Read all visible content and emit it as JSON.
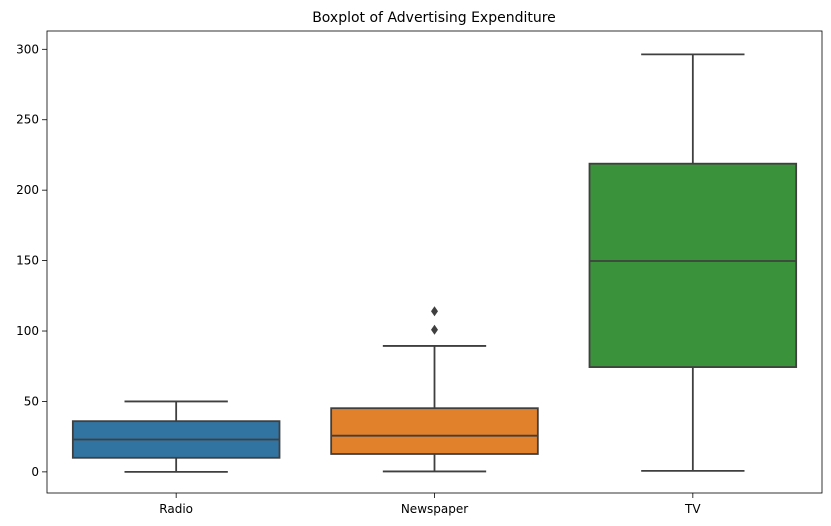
{
  "chart_data": {
    "type": "boxplot",
    "title": "Boxplot of Advertising Expenditure",
    "xlabel": "",
    "ylabel": "",
    "ylim": [
      -15,
      313
    ],
    "yticks": [
      0,
      50,
      100,
      150,
      200,
      250,
      300
    ],
    "grid": false,
    "categories": [
      "Radio",
      "Newspaper",
      "TV"
    ],
    "boxes": [
      {
        "category": "Radio",
        "color": "#3274a1",
        "whisker_low": 0,
        "q1": 10,
        "median": 23,
        "q3": 36,
        "whisker_high": 50,
        "outliers": []
      },
      {
        "category": "Newspaper",
        "color": "#e1812c",
        "whisker_low": 0.3,
        "q1": 12.7,
        "median": 25.7,
        "q3": 45.2,
        "whisker_high": 89.4,
        "outliers": [
          100.9,
          114
        ]
      },
      {
        "category": "TV",
        "color": "#3a923a",
        "whisker_low": 0.7,
        "q1": 74.4,
        "median": 149.7,
        "q3": 218.8,
        "whisker_high": 296.4,
        "outliers": []
      }
    ]
  }
}
